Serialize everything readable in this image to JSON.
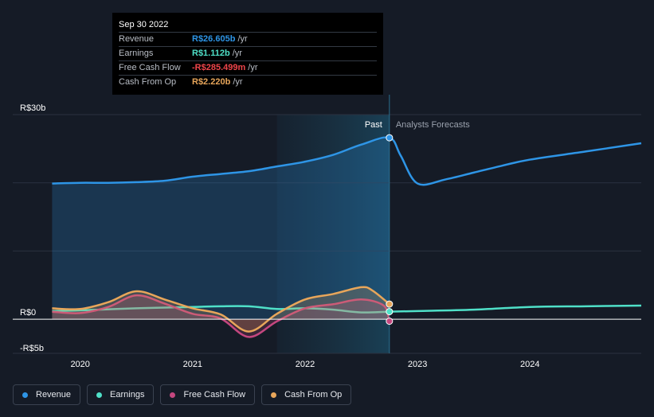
{
  "tooltip": {
    "date": "Sep 30 2022",
    "rows": [
      {
        "label": "Revenue",
        "value": "R$26.605b",
        "unit": "/yr",
        "color": "#2e95e6"
      },
      {
        "label": "Earnings",
        "value": "R$1.112b",
        "unit": "/yr",
        "color": "#4fe0c8"
      },
      {
        "label": "Free Cash Flow",
        "value": "-R$285.499m",
        "unit": "/yr",
        "color": "#f0454a"
      },
      {
        "label": "Cash From Op",
        "value": "R$2.220b",
        "unit": "/yr",
        "color": "#e8a65a"
      }
    ]
  },
  "legend": [
    {
      "label": "Revenue",
      "color": "#2e95e6"
    },
    {
      "label": "Earnings",
      "color": "#4fe0c8"
    },
    {
      "label": "Free Cash Flow",
      "color": "#c4477f"
    },
    {
      "label": "Cash From Op",
      "color": "#e8a65a"
    }
  ],
  "chart_data": {
    "type": "line",
    "y_tick_labels": [
      "R$30b",
      "R$0",
      "-R$5b"
    ],
    "x_tick_labels": [
      "2020",
      "2021",
      "2022",
      "2023",
      "2024"
    ],
    "ylim": [
      -5,
      30
    ],
    "xlim": [
      2019.4,
      2024.99
    ],
    "grid": true,
    "past_label": "Past",
    "forecast_label": "Analysts Forecasts",
    "past_end_x": 2022.75,
    "highlight_range": [
      2021.75,
      2022.75
    ],
    "series": [
      {
        "name": "Revenue",
        "color": "#2e95e6",
        "fill": true,
        "x": [
          2019.75,
          2020.0,
          2020.25,
          2020.5,
          2020.75,
          2021.0,
          2021.25,
          2021.5,
          2021.75,
          2022.0,
          2022.25,
          2022.5,
          2022.75,
          2022.85,
          2023.0,
          2023.25,
          2023.5,
          2023.75,
          2024.0,
          2024.5,
          2024.99
        ],
        "y": [
          19.9,
          20.0,
          20.0,
          20.1,
          20.3,
          20.9,
          21.3,
          21.7,
          22.4,
          23.1,
          24.1,
          25.6,
          26.605,
          24.0,
          19.9,
          20.5,
          21.5,
          22.5,
          23.4,
          24.6,
          25.8
        ]
      },
      {
        "name": "Earnings",
        "color": "#4fe0c8",
        "fill": false,
        "x": [
          2019.75,
          2020.0,
          2020.5,
          2021.0,
          2021.25,
          2021.5,
          2021.75,
          2022.0,
          2022.25,
          2022.5,
          2022.75,
          2023.0,
          2023.5,
          2024.0,
          2024.5,
          2024.99
        ],
        "y": [
          1.2,
          1.3,
          1.6,
          1.8,
          1.9,
          1.9,
          1.5,
          1.6,
          1.4,
          1.0,
          1.112,
          1.2,
          1.4,
          1.8,
          1.9,
          2.0
        ]
      },
      {
        "name": "Free Cash Flow",
        "color": "#c4477f",
        "fill": true,
        "x": [
          2019.75,
          2020.0,
          2020.25,
          2020.5,
          2020.75,
          2021.0,
          2021.25,
          2021.5,
          2021.75,
          2022.0,
          2022.25,
          2022.5,
          2022.7,
          2022.75
        ],
        "y": [
          1.1,
          0.9,
          1.8,
          3.5,
          2.3,
          0.8,
          0.1,
          -2.6,
          -0.3,
          1.6,
          2.2,
          2.9,
          2.0,
          -0.285499
        ]
      },
      {
        "name": "Cash From Op",
        "color": "#e8a65a",
        "fill": true,
        "x": [
          2019.75,
          2020.0,
          2020.25,
          2020.5,
          2020.75,
          2021.0,
          2021.25,
          2021.5,
          2021.75,
          2022.0,
          2022.25,
          2022.5,
          2022.6,
          2022.75
        ],
        "y": [
          1.6,
          1.5,
          2.5,
          4.1,
          2.9,
          1.6,
          0.7,
          -1.8,
          0.8,
          2.9,
          3.7,
          4.7,
          4.2,
          2.22
        ]
      }
    ]
  }
}
